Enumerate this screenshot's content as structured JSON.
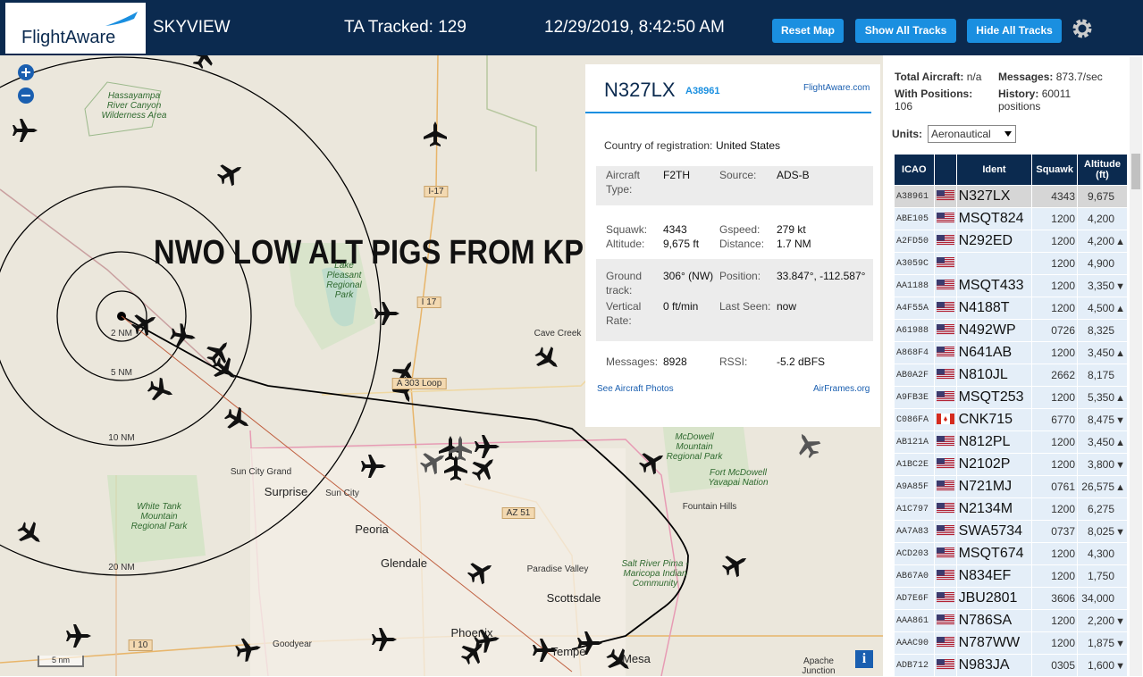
{
  "header": {
    "logo": "FlightAware",
    "app": "SKYVIEW",
    "tracked": "TA Tracked: 129",
    "datetime": "12/29/2019, 8:42:50 AM",
    "buttons": [
      "Reset Map",
      "Show All Tracks",
      "Hide All Tracks"
    ]
  },
  "map": {
    "overlay": "NWO LOW ALT PIGS FROM KPHX",
    "rings": [
      "2 NM",
      "5 NM",
      "10 NM",
      "20 NM"
    ],
    "scale": "5 nm",
    "places": [
      "Hassayampa River Canyon Wilderness Area",
      "Lake Pleasant Regional Park",
      "I-17",
      "I 17",
      "Cave Creek",
      "A 303 Loop",
      "McDowell Mountain Regional Park",
      "Fort McDowell Yavapai Nation",
      "Fountain Hills",
      "Sun City Grand",
      "Surprise",
      "Sun City",
      "AZ 51",
      "White Tank Mountain Regional Park",
      "Peoria",
      "Glendale",
      "Paradise Valley",
      "Salt River Pima - Maricopa Indian Community",
      "Scottsdale",
      "Goodyear",
      "I 10",
      "Phoenix",
      "Tempe",
      "Mesa",
      "Apache Junction"
    ]
  },
  "aircraft_panel": {
    "ident": "N327LX",
    "hex": "A38961",
    "link": "FlightAware.com",
    "country_label": "Country of registration:",
    "country": "United States",
    "fields": [
      [
        "Aircraft Type:",
        "F2TH",
        "Source:",
        "ADS-B"
      ],
      [
        "Squawk:",
        "4343",
        "Gspeed:",
        "279 kt"
      ],
      [
        "Altitude:",
        "9,675 ft",
        "Distance:",
        "1.7 NM"
      ],
      [
        "Ground track:",
        "306° (NW)",
        "Position:",
        "33.847°, -112.587°"
      ],
      [
        "Vertical Rate:",
        "0 ft/min",
        "Last Seen:",
        "now"
      ],
      [
        "Messages:",
        "8928",
        "RSSI:",
        "-5.2 dBFS"
      ]
    ],
    "photos": "See Aircraft Photos",
    "airframes": "AirFrames.org"
  },
  "sidebar": {
    "total_label": "Total Aircraft:",
    "total": "n/a",
    "messages_label": "Messages:",
    "messages": "873.7/sec",
    "positions_label": "With Positions:",
    "positions": "106",
    "history_label": "History:",
    "history": "60011 positions",
    "units_label": "Units:",
    "units": "Aeronautical"
  },
  "table": {
    "columns": [
      "ICAO",
      "Ident",
      "Squawk",
      "Altitude (ft)"
    ],
    "rows": [
      {
        "icao": "A38961",
        "flag": "us",
        "ident": "N327LX",
        "squawk": "4343",
        "altitude": "9,675"
      },
      {
        "icao": "ABE105",
        "flag": "us",
        "ident": "MSQT824",
        "squawk": "1200",
        "altitude": "4,200"
      },
      {
        "icao": "A2FD50",
        "flag": "us",
        "ident": "N292ED",
        "squawk": "1200",
        "altitude": "4,200",
        "trend": "▲"
      },
      {
        "icao": "A3059C",
        "flag": "us",
        "squawk": "1200",
        "altitude": "4,900"
      },
      {
        "icao": "AA1188",
        "flag": "us",
        "ident": "MSQT433",
        "squawk": "1200",
        "altitude": "3,350",
        "trend": "▼"
      },
      {
        "icao": "A4F55A",
        "flag": "us",
        "ident": "N4188T",
        "squawk": "1200",
        "altitude": "4,500",
        "trend": "▲"
      },
      {
        "icao": "A61988",
        "flag": "us",
        "ident": "N492WP",
        "squawk": "0726",
        "altitude": "8,325"
      },
      {
        "icao": "A868F4",
        "flag": "us",
        "ident": "N641AB",
        "squawk": "1200",
        "altitude": "3,450",
        "trend": "▲"
      },
      {
        "icao": "AB0A2F",
        "flag": "us",
        "ident": "N810JL",
        "squawk": "2662",
        "altitude": "8,175"
      },
      {
        "icao": "A9FB3E",
        "flag": "us",
        "ident": "MSQT253",
        "squawk": "1200",
        "altitude": "5,350",
        "trend": "▲"
      },
      {
        "icao": "C086FA",
        "flag": "ca",
        "ident": "CNK715",
        "squawk": "6770",
        "altitude": "8,475",
        "trend": "▼"
      },
      {
        "icao": "AB121A",
        "flag": "us",
        "ident": "N812PL",
        "squawk": "1200",
        "altitude": "3,450",
        "trend": "▲"
      },
      {
        "icao": "A1BC2E",
        "flag": "us",
        "ident": "N2102P",
        "squawk": "1200",
        "altitude": "3,800",
        "trend": "▼"
      },
      {
        "icao": "A9A85F",
        "flag": "us",
        "ident": "N721MJ",
        "squawk": "0761",
        "altitude": "26,575",
        "trend": "▲"
      },
      {
        "icao": "A1C797",
        "flag": "us",
        "ident": "N2134M",
        "squawk": "1200",
        "altitude": "6,275"
      },
      {
        "icao": "AA7A83",
        "flag": "us",
        "ident": "SWA5734",
        "squawk": "0737",
        "altitude": "8,025",
        "trend": "▼"
      },
      {
        "icao": "ACD203",
        "flag": "us",
        "ident": "MSQT674",
        "squawk": "1200",
        "altitude": "4,300"
      },
      {
        "icao": "AB67A0",
        "flag": "us",
        "ident": "N834EF",
        "squawk": "1200",
        "altitude": "1,750"
      },
      {
        "icao": "AD7E6F",
        "flag": "us",
        "ident": "JBU2801",
        "squawk": "3606",
        "altitude": "34,000"
      },
      {
        "icao": "AAA861",
        "flag": "us",
        "ident": "N786SA",
        "squawk": "1200",
        "altitude": "2,200",
        "trend": "▼"
      },
      {
        "icao": "AAAC90",
        "flag": "us",
        "ident": "N787WW",
        "squawk": "1200",
        "altitude": "1,875",
        "trend": "▼"
      },
      {
        "icao": "ADB712",
        "flag": "us",
        "ident": "N983JA",
        "squawk": "0305",
        "altitude": "1,600",
        "trend": "▼"
      }
    ]
  }
}
